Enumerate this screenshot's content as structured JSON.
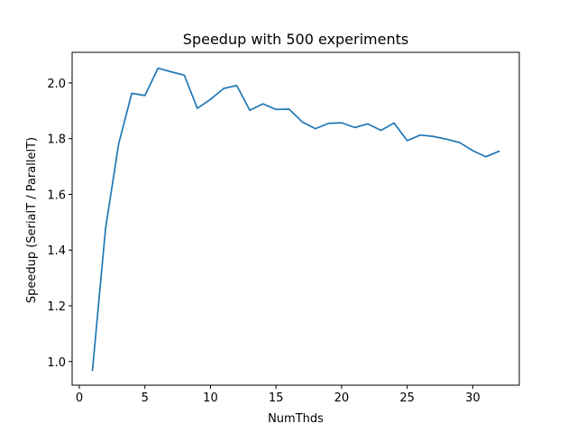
{
  "chart_data": {
    "type": "line",
    "title": "Speedup with 500 experiments",
    "xlabel": "NumThds",
    "ylabel": "Speedup (SerialT / ParallelT)",
    "xlim": [
      -0.55,
      33.55
    ],
    "ylim": [
      0.915,
      2.11
    ],
    "xticks": [
      0,
      5,
      10,
      15,
      20,
      25,
      30
    ],
    "xtick_labels": [
      "0",
      "5",
      "10",
      "15",
      "20",
      "25",
      "30"
    ],
    "yticks": [
      1.0,
      1.2,
      1.4,
      1.6,
      1.8,
      2.0
    ],
    "ytick_labels": [
      "1.0",
      "1.2",
      "1.4",
      "1.6",
      "1.8",
      "2.0"
    ],
    "grid": false,
    "series": [
      {
        "color": "#1f77b4",
        "x": [
          1,
          2,
          3,
          4,
          5,
          6,
          7,
          8,
          9,
          10,
          11,
          12,
          13,
          14,
          15,
          16,
          17,
          18,
          19,
          20,
          21,
          22,
          23,
          24,
          25,
          26,
          27,
          28,
          29,
          30,
          31,
          32
        ],
        "y": [
          0.968,
          1.478,
          1.782,
          1.963,
          1.955,
          2.053,
          2.04,
          2.028,
          1.909,
          1.941,
          1.98,
          1.991,
          1.902,
          1.925,
          1.905,
          1.906,
          1.86,
          1.836,
          1.855,
          1.857,
          1.84,
          1.853,
          1.83,
          1.856,
          1.793,
          1.813,
          1.808,
          1.798,
          1.786,
          1.757,
          1.735,
          1.755
        ]
      }
    ]
  }
}
